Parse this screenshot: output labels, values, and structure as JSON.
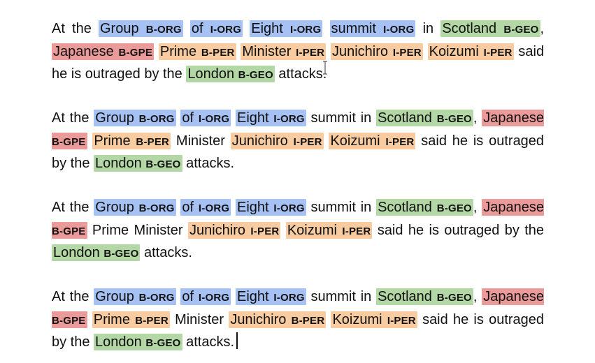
{
  "colors": {
    "ORG": "#a6c1f4",
    "GEO": "#b4d8a5",
    "GPE": "#eb9a9a",
    "PER": "#f8cca0"
  },
  "paragraphs": [
    {
      "tokens": [
        {
          "text": "At the"
        },
        {
          "text": "Group",
          "tag": "B-ORG",
          "type": "ORG"
        },
        {
          "text": "of",
          "tag": "I-ORG",
          "type": "ORG"
        },
        {
          "text": "Eight",
          "tag": "I-ORG",
          "type": "ORG"
        },
        {
          "text": "summit",
          "tag": "I-ORG",
          "type": "ORG"
        },
        {
          "text": "in"
        },
        {
          "text": "Scotland",
          "tag": "B-GEO",
          "type": "GEO",
          "after": ","
        },
        {
          "text": "Japanese",
          "tag": "B-GPE",
          "type": "GPE"
        },
        {
          "text": "Prime",
          "tag": "B-PER",
          "type": "PER"
        },
        {
          "text": "Minister",
          "tag": "I-PER",
          "type": "PER"
        },
        {
          "text": "Junichiro",
          "tag": "I-PER",
          "type": "PER"
        },
        {
          "text": "Koizumi",
          "tag": "I-PER",
          "type": "PER"
        },
        {
          "text": "said he is outraged by the"
        },
        {
          "text": "London",
          "tag": "B-GEO",
          "type": "GEO"
        },
        {
          "text": "attacks."
        }
      ]
    },
    {
      "tokens": [
        {
          "text": "At the"
        },
        {
          "text": "Group",
          "tag": "B-ORG",
          "type": "ORG"
        },
        {
          "text": "of",
          "tag": "I-ORG",
          "type": "ORG"
        },
        {
          "text": "Eight",
          "tag": "I-ORG",
          "type": "ORG"
        },
        {
          "text": "summit in"
        },
        {
          "text": "Scotland",
          "tag": "B-GEO",
          "type": "GEO",
          "after": ","
        },
        {
          "text": "Japanese",
          "tag": "B-GPE",
          "type": "GPE"
        },
        {
          "text": "Prime",
          "tag": "B-PER",
          "type": "PER"
        },
        {
          "text": "Minister"
        },
        {
          "text": "Junichiro",
          "tag": "I-PER",
          "type": "PER"
        },
        {
          "text": "Koizumi",
          "tag": "I-PER",
          "type": "PER"
        },
        {
          "text": "said he is outraged by the"
        },
        {
          "text": "London",
          "tag": "B-GEO",
          "type": "GEO"
        },
        {
          "text": "attacks."
        }
      ]
    },
    {
      "tokens": [
        {
          "text": "At the"
        },
        {
          "text": "Group",
          "tag": "B-ORG",
          "type": "ORG"
        },
        {
          "text": "of",
          "tag": "I-ORG",
          "type": "ORG"
        },
        {
          "text": "Eight",
          "tag": "I-ORG",
          "type": "ORG"
        },
        {
          "text": "summit in"
        },
        {
          "text": "Scotland",
          "tag": "B-GEO",
          "type": "GEO",
          "after": ","
        },
        {
          "text": "Japanese",
          "tag": "B-GPE",
          "type": "GPE"
        },
        {
          "text": "Prime Minister"
        },
        {
          "text": "Junichiro",
          "tag": "I-PER",
          "type": "PER"
        },
        {
          "text": "Koizumi",
          "tag": "I-PER",
          "type": "PER"
        },
        {
          "text": "said he is outraged by the"
        },
        {
          "text": "London",
          "tag": "B-GEO",
          "type": "GEO"
        },
        {
          "text": "attacks."
        }
      ]
    },
    {
      "tokens": [
        {
          "text": "At the"
        },
        {
          "text": "Group",
          "tag": "B-ORG",
          "type": "ORG"
        },
        {
          "text": "of",
          "tag": "I-ORG",
          "type": "ORG"
        },
        {
          "text": "Eight",
          "tag": "I-ORG",
          "type": "ORG"
        },
        {
          "text": "summit in"
        },
        {
          "text": "Scotland",
          "tag": "B-GEO",
          "type": "GEO",
          "after": ","
        },
        {
          "text": "Japanese",
          "tag": "B-GPE",
          "type": "GPE"
        },
        {
          "text": "Prime",
          "tag": "B-PER",
          "type": "PER"
        },
        {
          "text": "Minister"
        },
        {
          "text": "Junichiro",
          "tag": "B-PER",
          "type": "PER"
        },
        {
          "text": "Koizumi",
          "tag": "I-PER",
          "type": "PER"
        },
        {
          "text": "said he is outraged by the"
        },
        {
          "text": "London",
          "tag": "B-GEO",
          "type": "GEO"
        },
        {
          "text": "attacks."
        }
      ]
    }
  ]
}
